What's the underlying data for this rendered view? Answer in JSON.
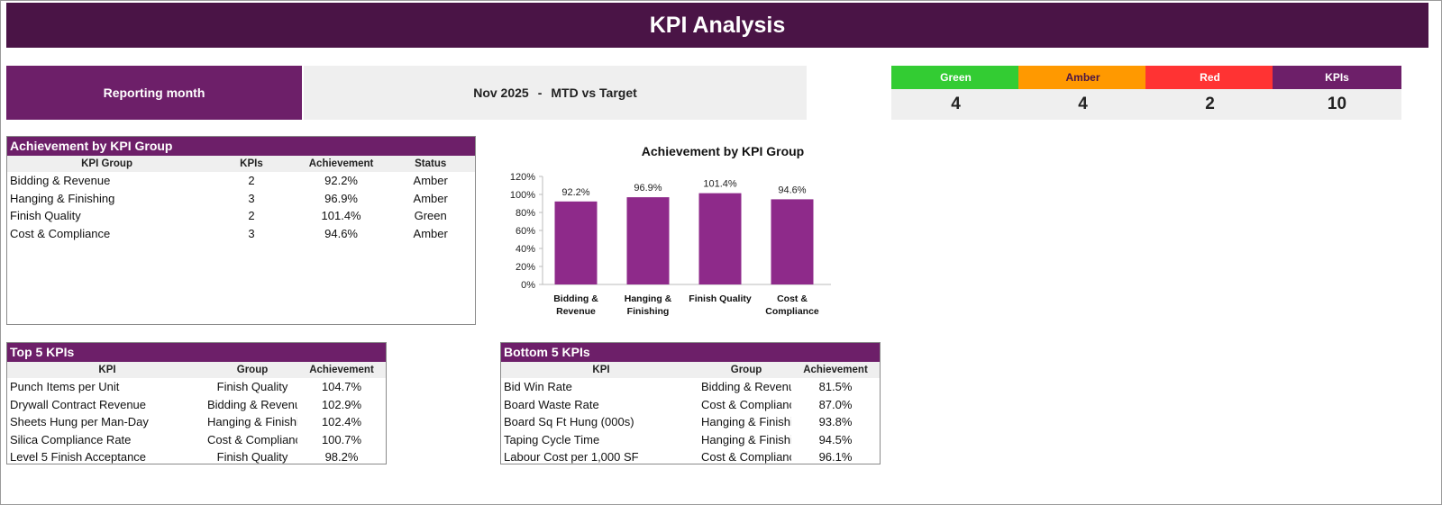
{
  "header": {
    "title": "KPI Analysis"
  },
  "reporting": {
    "label": "Reporting month",
    "month": "Nov 2025",
    "separator": "-",
    "mode": "MTD vs Target"
  },
  "rag_summary": [
    {
      "label": "Green",
      "value": "4",
      "color": "#33cc33",
      "text_color": "#ffffff"
    },
    {
      "label": "Amber",
      "value": "4",
      "color": "#ff9900",
      "text_color": "#4a1446"
    },
    {
      "label": "Red",
      "value": "2",
      "color": "#ff3333",
      "text_color": "#ffffff"
    },
    {
      "label": "KPIs",
      "value": "10",
      "color": "#6d1f69",
      "text_color": "#ffffff"
    }
  ],
  "group_table": {
    "title": "Achievement by KPI Group",
    "columns": [
      "KPI Group",
      "KPIs",
      "Achievement",
      "Status"
    ],
    "rows": [
      [
        "Bidding & Revenue",
        "2",
        "92.2%",
        "Amber"
      ],
      [
        "Hanging & Finishing",
        "3",
        "96.9%",
        "Amber"
      ],
      [
        "Finish Quality",
        "2",
        "101.4%",
        "Green"
      ],
      [
        "Cost & Compliance",
        "3",
        "94.6%",
        "Amber"
      ]
    ]
  },
  "top5": {
    "title": "Top 5 KPIs",
    "columns": [
      "KPI",
      "Group",
      "Achievement"
    ],
    "rows": [
      [
        "Punch Items per Unit",
        "Finish Quality",
        "104.7%"
      ],
      [
        "Drywall Contract Revenue",
        "Bidding & Revenue",
        "102.9%"
      ],
      [
        "Sheets Hung per Man-Day",
        "Hanging & Finishing",
        "102.4%"
      ],
      [
        "Silica Compliance Rate",
        "Cost & Compliance",
        "100.7%"
      ],
      [
        "Level 5 Finish Acceptance",
        "Finish Quality",
        "98.2%"
      ]
    ]
  },
  "bottom5": {
    "title": "Bottom 5 KPIs",
    "columns": [
      "KPI",
      "Group",
      "Achievement"
    ],
    "rows": [
      [
        "Bid Win Rate",
        "Bidding & Revenue",
        "81.5%"
      ],
      [
        "Board Waste Rate",
        "Cost & Compliance",
        "87.0%"
      ],
      [
        "Board Sq Ft Hung (000s)",
        "Hanging & Finishing",
        "93.8%"
      ],
      [
        "Taping Cycle Time",
        "Hanging & Finishing",
        "94.5%"
      ],
      [
        "Labour Cost per 1,000 SF",
        "Cost & Compliance",
        "96.1%"
      ]
    ]
  },
  "chart_data": {
    "type": "bar",
    "title": "Achievement by KPI Group",
    "categories": [
      [
        "Bidding &",
        "Revenue"
      ],
      [
        "Hanging &",
        "Finishing"
      ],
      [
        "Finish Quality"
      ],
      [
        "Cost &",
        "Compliance"
      ]
    ],
    "values": [
      92.2,
      96.9,
      101.4,
      94.6
    ],
    "data_labels": [
      "92.2%",
      "96.9%",
      "101.4%",
      "94.6%"
    ],
    "ylim": [
      0,
      120
    ],
    "yticks": [
      "0%",
      "20%",
      "40%",
      "60%",
      "80%",
      "100%",
      "120%"
    ],
    "bar_color": "#8e2a8a",
    "grid": false
  }
}
